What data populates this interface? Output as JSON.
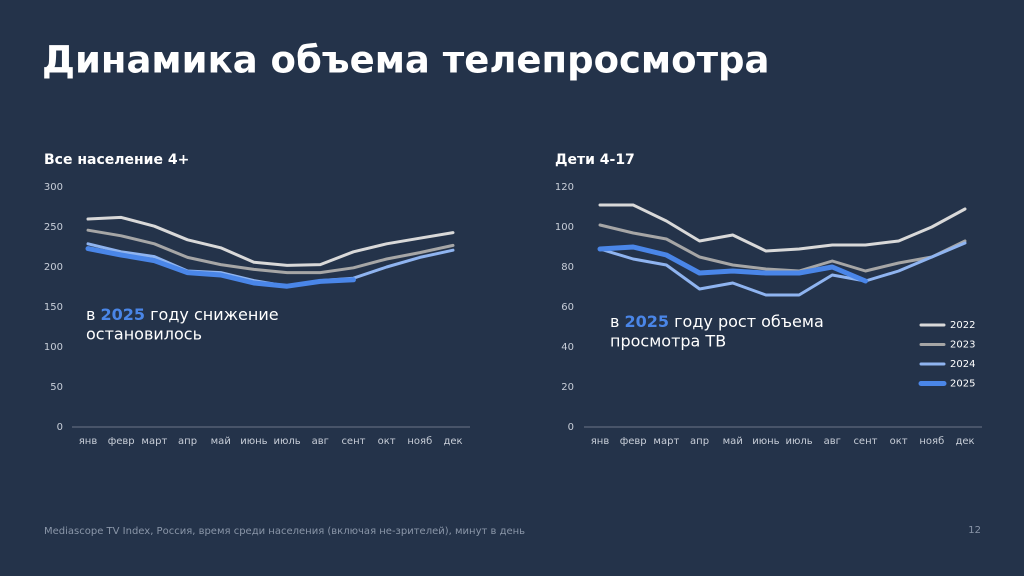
{
  "title": "Динамика объема телепросмотра",
  "footer": "Mediascope TV Index, Россия, время среди населения (включая не-зрителей), минут в день",
  "page_number": "12",
  "chart_data": [
    {
      "type": "line",
      "title": "Все население 4+",
      "categories": [
        "янв",
        "февр",
        "март",
        "апр",
        "май",
        "июнь",
        "июль",
        "авг",
        "сент",
        "окт",
        "нояб",
        "дек"
      ],
      "ylim": [
        0,
        300
      ],
      "yticks": [
        0,
        50,
        100,
        150,
        200,
        250,
        300
      ],
      "annotation": {
        "before": "в ",
        "highlight": "2025",
        "after": " году снижение",
        "line2": "остановилось",
        "highlight_color": "#4a86e8"
      },
      "series": [
        {
          "color": "#d9d9d9",
          "values": [
            260,
            262,
            251,
            234,
            224,
            206,
            202,
            203,
            219,
            229,
            236,
            243
          ]
        },
        {
          "color": "#a6a6a6",
          "values": [
            246,
            239,
            229,
            212,
            203,
            197,
            193,
            193,
            199,
            210,
            218,
            227
          ]
        },
        {
          "color": "#8fb4f0",
          "values": [
            229,
            219,
            213,
            195,
            193,
            183,
            176,
            183,
            186,
            200,
            212,
            221
          ]
        },
        {
          "color": "#4a86e8",
          "values": [
            223,
            215,
            208,
            193,
            190,
            180,
            176,
            182,
            184,
            null,
            null,
            null
          ]
        }
      ]
    },
    {
      "type": "line",
      "title": "Дети 4-17",
      "categories": [
        "янв",
        "февр",
        "март",
        "апр",
        "май",
        "июнь",
        "июль",
        "авг",
        "сент",
        "окт",
        "нояб",
        "дек"
      ],
      "ylim": [
        0,
        120
      ],
      "yticks": [
        0,
        20,
        40,
        60,
        80,
        100,
        120
      ],
      "annotation": {
        "before": "в ",
        "highlight": "2025",
        "after": " году рост объема",
        "line2": "просмотра ТВ",
        "highlight_color": "#4a86e8"
      },
      "legend": "right",
      "series": [
        {
          "name": "2022",
          "color": "#d9d9d9",
          "values": [
            111,
            111,
            103,
            93,
            96,
            88,
            89,
            91,
            91,
            93,
            100,
            109
          ]
        },
        {
          "name": "2023",
          "color": "#a6a6a6",
          "values": [
            101,
            97,
            94,
            85,
            81,
            79,
            78,
            83,
            78,
            82,
            85,
            93
          ]
        },
        {
          "name": "2024",
          "color": "#8fb4f0",
          "values": [
            89,
            84,
            81,
            69,
            72,
            66,
            66,
            76,
            73,
            78,
            85,
            92
          ]
        },
        {
          "name": "2025",
          "color": "#4a86e8",
          "values": [
            89,
            90,
            86,
            77,
            78,
            77,
            77,
            80,
            73,
            null,
            null,
            null
          ]
        }
      ]
    }
  ]
}
